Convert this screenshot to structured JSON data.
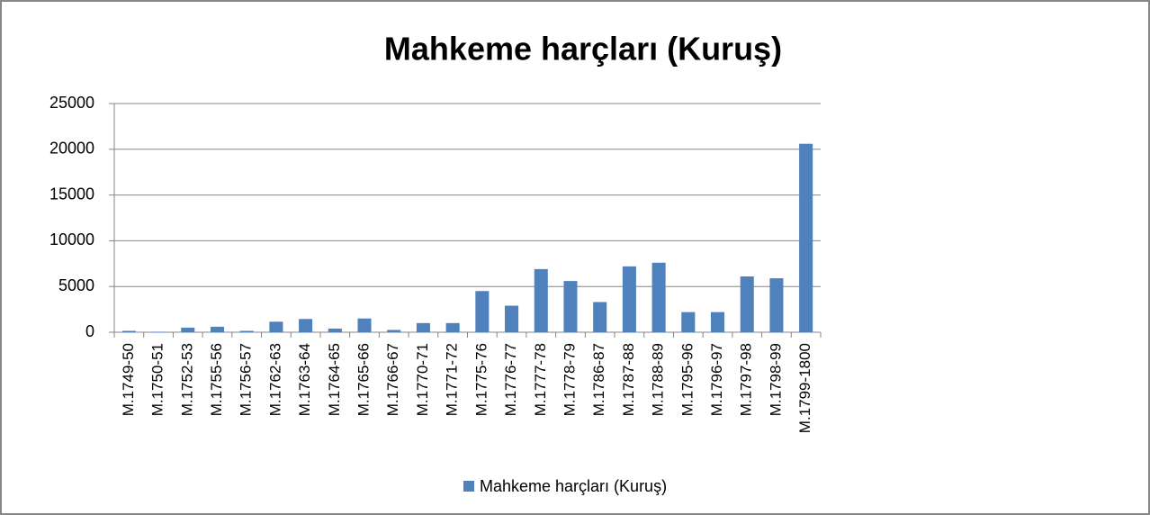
{
  "chart_data": {
    "type": "bar",
    "title": "Mahkeme harçları (Kuruş)",
    "categories": [
      "M.1749-50",
      "M.1750-51",
      "M.1752-53",
      "M.1755-56",
      "M.1756-57",
      "M.1762-63",
      "M.1763-64",
      "M.1764-65",
      "M.1765-66",
      "M.1766-67",
      "M.1770-71",
      "M.1771-72",
      "M.1775-76",
      "M.1776-77",
      "M.1777-78",
      "M.1778-79",
      "M.1786-87",
      "M.1787-88",
      "M.1788-89",
      "M.1795-96",
      "M.1796-97",
      "M.1797-98",
      "M.1798-99",
      "M.1799-1800"
    ],
    "series": [
      {
        "name": "Mahkeme harçları (Kuruş)",
        "color": "#4f81bd",
        "values": [
          150,
          50,
          500,
          600,
          150,
          1150,
          1450,
          400,
          1500,
          250,
          1000,
          1000,
          4500,
          2900,
          6900,
          5600,
          3300,
          7200,
          7600,
          2200,
          2200,
          6100,
          5900,
          20600
        ]
      }
    ],
    "ylim": [
      0,
      25000
    ],
    "yticks": [
      0,
      5000,
      10000,
      15000,
      20000,
      25000
    ],
    "grid": true,
    "legend": "bottom"
  }
}
